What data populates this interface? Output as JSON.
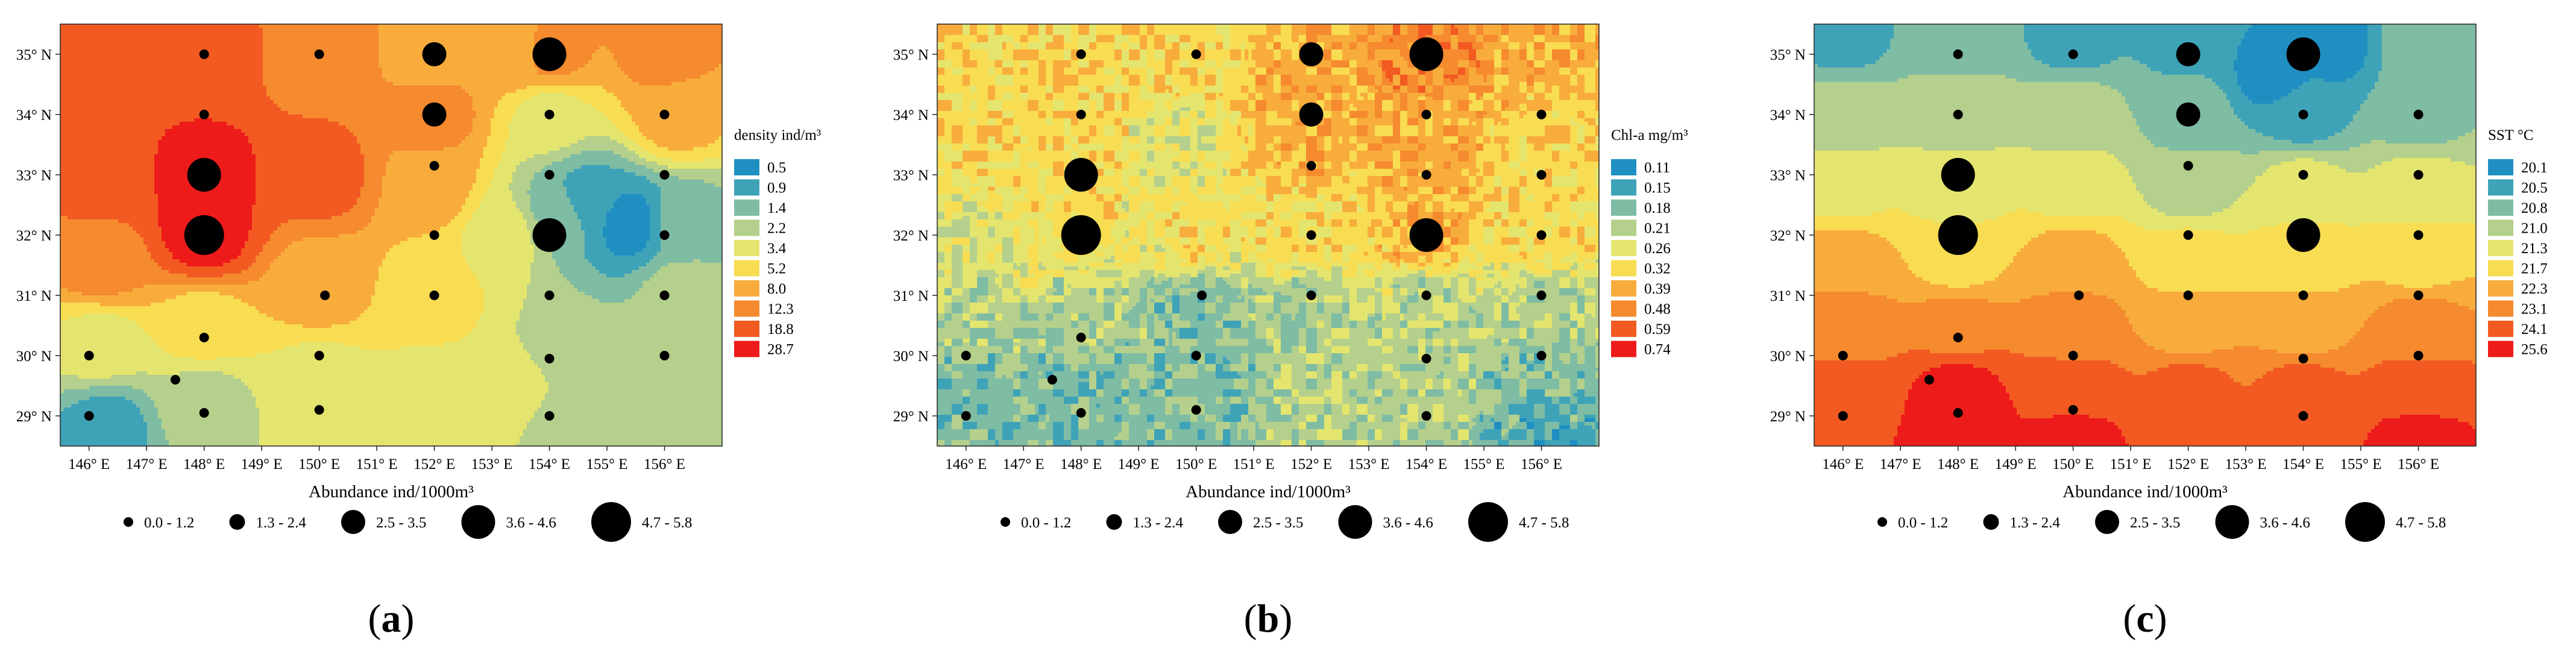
{
  "chart_data": [
    {
      "panel": "(a)",
      "type": "heatmap",
      "variable_legend": {
        "title": "density ind/m³",
        "levels": [
          "0.5",
          "0.9",
          "1.4",
          "2.2",
          "3.4",
          "5.2",
          "8.0",
          "12.3",
          "18.8",
          "28.7"
        ]
      },
      "x_ticks": [
        "146° E",
        "147° E",
        "148° E",
        "149° E",
        "150° E",
        "151° E",
        "152° E",
        "153° E",
        "154° E",
        "155° E",
        "156° E"
      ],
      "y_ticks": [
        "35° N",
        "34° N",
        "33° N",
        "32° N",
        "31° N",
        "30° N",
        "29° N"
      ],
      "xlim": [
        145.5,
        157.0
      ],
      "ylim": [
        28.5,
        35.5
      ],
      "xlabel": "Abundance ind/1000m³",
      "size_legend": [
        "0.0 - 1.2",
        "1.3 - 2.4",
        "2.5 - 3.5",
        "3.6 - 4.6",
        "4.7 - 5.8"
      ],
      "field": [
        {
          "lon": 146.2,
          "lat": 34.8,
          "v": 8
        },
        {
          "lon": 146.2,
          "lat": 33,
          "v": 8
        },
        {
          "lon": 146.2,
          "lat": 31.5,
          "v": 7
        },
        {
          "lon": 146.2,
          "lat": 30.2,
          "v": 4
        },
        {
          "lon": 146.3,
          "lat": 28.8,
          "v": 1
        },
        {
          "lon": 148,
          "lat": 33,
          "v": 9
        },
        {
          "lon": 148,
          "lat": 32,
          "v": 9
        },
        {
          "lon": 148,
          "lat": 35,
          "v": 8
        },
        {
          "lon": 148,
          "lat": 30.5,
          "v": 5
        },
        {
          "lon": 148,
          "lat": 29.2,
          "v": 3
        },
        {
          "lon": 150,
          "lat": 35,
          "v": 7
        },
        {
          "lon": 150,
          "lat": 33,
          "v": 8
        },
        {
          "lon": 150,
          "lat": 31.2,
          "v": 6
        },
        {
          "lon": 150,
          "lat": 29.5,
          "v": 4
        },
        {
          "lon": 152,
          "lat": 35,
          "v": 6
        },
        {
          "lon": 152,
          "lat": 34,
          "v": 7
        },
        {
          "lon": 152,
          "lat": 32.8,
          "v": 6
        },
        {
          "lon": 152,
          "lat": 31,
          "v": 5
        },
        {
          "lon": 152,
          "lat": 29.3,
          "v": 4
        },
        {
          "lon": 153.5,
          "lat": 35,
          "v": 6
        },
        {
          "lon": 153.2,
          "lat": 32,
          "v": 4
        },
        {
          "lon": 153.5,
          "lat": 29.5,
          "v": 4
        },
        {
          "lon": 154,
          "lat": 35,
          "v": 7
        },
        {
          "lon": 154,
          "lat": 34,
          "v": 4
        },
        {
          "lon": 154.6,
          "lat": 32.6,
          "v": 1
        },
        {
          "lon": 154.2,
          "lat": 32.4,
          "v": 2
        },
        {
          "lon": 155.4,
          "lat": 32.2,
          "v": 0
        },
        {
          "lon": 154.2,
          "lat": 30,
          "v": 3
        },
        {
          "lon": 154.3,
          "lat": 29,
          "v": 3
        },
        {
          "lon": 156,
          "lat": 35,
          "v": 7
        },
        {
          "lon": 156.2,
          "lat": 34,
          "v": 6
        },
        {
          "lon": 156.3,
          "lat": 32.2,
          "v": 2
        },
        {
          "lon": 156.3,
          "lat": 31,
          "v": 3
        },
        {
          "lon": 156.2,
          "lat": 29.6,
          "v": 3
        }
      ],
      "stations": [
        {
          "lon": 148,
          "lat": 35,
          "c": 0
        },
        {
          "lon": 150,
          "lat": 35,
          "c": 0
        },
        {
          "lon": 152,
          "lat": 35,
          "c": 2
        },
        {
          "lon": 154,
          "lat": 35,
          "c": 3
        },
        {
          "lon": 148,
          "lat": 34,
          "c": 0
        },
        {
          "lon": 152,
          "lat": 34,
          "c": 2
        },
        {
          "lon": 154,
          "lat": 34,
          "c": 0
        },
        {
          "lon": 156,
          "lat": 34,
          "c": 0
        },
        {
          "lon": 148,
          "lat": 33,
          "c": 3
        },
        {
          "lon": 152,
          "lat": 33.15,
          "c": 0
        },
        {
          "lon": 154,
          "lat": 33,
          "c": 0
        },
        {
          "lon": 156,
          "lat": 33,
          "c": 0
        },
        {
          "lon": 148,
          "lat": 32,
          "c": 4
        },
        {
          "lon": 152,
          "lat": 32,
          "c": 0
        },
        {
          "lon": 154,
          "lat": 32,
          "c": 3
        },
        {
          "lon": 156,
          "lat": 32,
          "c": 0
        },
        {
          "lon": 150.1,
          "lat": 31,
          "c": 0
        },
        {
          "lon": 152,
          "lat": 31,
          "c": 0
        },
        {
          "lon": 154,
          "lat": 31,
          "c": 0
        },
        {
          "lon": 156,
          "lat": 31,
          "c": 0
        },
        {
          "lon": 148,
          "lat": 30.3,
          "c": 0
        },
        {
          "lon": 146,
          "lat": 30,
          "c": 0
        },
        {
          "lon": 150,
          "lat": 30,
          "c": 0
        },
        {
          "lon": 154,
          "lat": 29.95,
          "c": 0
        },
        {
          "lon": 156,
          "lat": 30,
          "c": 0
        },
        {
          "lon": 147.5,
          "lat": 29.6,
          "c": 0
        },
        {
          "lon": 146,
          "lat": 29,
          "c": 0
        },
        {
          "lon": 148,
          "lat": 29.05,
          "c": 0
        },
        {
          "lon": 150,
          "lat": 29.1,
          "c": 0
        },
        {
          "lon": 154,
          "lat": 29,
          "c": 0
        }
      ]
    },
    {
      "panel": "(b)",
      "type": "heatmap",
      "variable_legend": {
        "title": "Chl-a mg/m³",
        "levels": [
          "0.11",
          "0.15",
          "0.18",
          "0.21",
          "0.26",
          "0.32",
          "0.39",
          "0.48",
          "0.59",
          "0.74"
        ]
      },
      "x_ticks": [
        "146° E",
        "147° E",
        "148° E",
        "149° E",
        "150° E",
        "151° E",
        "152° E",
        "153° E",
        "154° E",
        "155° E",
        "156° E"
      ],
      "y_ticks": [
        "35° N",
        "34° N",
        "33° N",
        "32° N",
        "31° N",
        "30° N",
        "29° N"
      ],
      "xlim": [
        145.5,
        157.0
      ],
      "ylim": [
        28.5,
        35.5
      ],
      "xlabel": "Abundance ind/1000m³",
      "size_legend": [
        "0.0 - 1.2",
        "1.3 - 2.4",
        "2.5 - 3.5",
        "3.6 - 4.6",
        "4.7 - 5.8"
      ],
      "field": [
        {
          "lon": 146,
          "lat": 35,
          "v": 5
        },
        {
          "lon": 148,
          "lat": 35,
          "v": 5
        },
        {
          "lon": 150,
          "lat": 35,
          "v": 5
        },
        {
          "lon": 152,
          "lat": 35,
          "v": 6
        },
        {
          "lon": 154,
          "lat": 35,
          "v": 7
        },
        {
          "lon": 156,
          "lat": 35,
          "v": 6
        },
        {
          "lon": 146,
          "lat": 33.5,
          "v": 5
        },
        {
          "lon": 148,
          "lat": 33.5,
          "v": 5
        },
        {
          "lon": 149.5,
          "lat": 33.5,
          "v": 4
        },
        {
          "lon": 152,
          "lat": 33.5,
          "v": 6
        },
        {
          "lon": 154,
          "lat": 33.5,
          "v": 6
        },
        {
          "lon": 156,
          "lat": 33.5,
          "v": 5
        },
        {
          "lon": 146,
          "lat": 32,
          "v": 4
        },
        {
          "lon": 148,
          "lat": 32,
          "v": 5
        },
        {
          "lon": 150,
          "lat": 32,
          "v": 5
        },
        {
          "lon": 152,
          "lat": 32,
          "v": 5
        },
        {
          "lon": 154,
          "lat": 32,
          "v": 6
        },
        {
          "lon": 156,
          "lat": 32,
          "v": 5
        },
        {
          "lon": 146,
          "lat": 30.8,
          "v": 3
        },
        {
          "lon": 148,
          "lat": 30.8,
          "v": 3
        },
        {
          "lon": 150,
          "lat": 30.8,
          "v": 2
        },
        {
          "lon": 152,
          "lat": 30.8,
          "v": 3
        },
        {
          "lon": 154,
          "lat": 30.8,
          "v": 3
        },
        {
          "lon": 156,
          "lat": 30.8,
          "v": 3
        },
        {
          "lon": 146,
          "lat": 29.4,
          "v": 2
        },
        {
          "lon": 148,
          "lat": 29.4,
          "v": 2
        },
        {
          "lon": 150,
          "lat": 29.4,
          "v": 2
        },
        {
          "lon": 152,
          "lat": 29.4,
          "v": 3
        },
        {
          "lon": 154,
          "lat": 29.4,
          "v": 3
        },
        {
          "lon": 156,
          "lat": 29.4,
          "v": 2
        },
        {
          "lon": 146,
          "lat": 28.6,
          "v": 2
        },
        {
          "lon": 150,
          "lat": 28.6,
          "v": 2
        },
        {
          "lon": 156,
          "lat": 28.6,
          "v": 1
        }
      ],
      "stations": [
        {
          "lon": 148,
          "lat": 35,
          "c": 0
        },
        {
          "lon": 150,
          "lat": 35,
          "c": 0
        },
        {
          "lon": 152,
          "lat": 35,
          "c": 2
        },
        {
          "lon": 154,
          "lat": 35,
          "c": 3
        },
        {
          "lon": 148,
          "lat": 34,
          "c": 0
        },
        {
          "lon": 152,
          "lat": 34,
          "c": 2
        },
        {
          "lon": 154,
          "lat": 34,
          "c": 0
        },
        {
          "lon": 156,
          "lat": 34,
          "c": 0
        },
        {
          "lon": 148,
          "lat": 33,
          "c": 3
        },
        {
          "lon": 152,
          "lat": 33.15,
          "c": 0
        },
        {
          "lon": 154,
          "lat": 33,
          "c": 0
        },
        {
          "lon": 156,
          "lat": 33,
          "c": 0
        },
        {
          "lon": 148,
          "lat": 32,
          "c": 4
        },
        {
          "lon": 152,
          "lat": 32,
          "c": 0
        },
        {
          "lon": 154,
          "lat": 32,
          "c": 3
        },
        {
          "lon": 156,
          "lat": 32,
          "c": 0
        },
        {
          "lon": 150.1,
          "lat": 31,
          "c": 0
        },
        {
          "lon": 152,
          "lat": 31,
          "c": 0
        },
        {
          "lon": 154,
          "lat": 31,
          "c": 0
        },
        {
          "lon": 156,
          "lat": 31,
          "c": 0
        },
        {
          "lon": 148,
          "lat": 30.3,
          "c": 0
        },
        {
          "lon": 146,
          "lat": 30,
          "c": 0
        },
        {
          "lon": 150,
          "lat": 30,
          "c": 0
        },
        {
          "lon": 154,
          "lat": 29.95,
          "c": 0
        },
        {
          "lon": 156,
          "lat": 30,
          "c": 0
        },
        {
          "lon": 147.5,
          "lat": 29.6,
          "c": 0
        },
        {
          "lon": 146,
          "lat": 29,
          "c": 0
        },
        {
          "lon": 148,
          "lat": 29.05,
          "c": 0
        },
        {
          "lon": 150,
          "lat": 29.1,
          "c": 0
        },
        {
          "lon": 154,
          "lat": 29,
          "c": 0
        }
      ]
    },
    {
      "panel": "(c)",
      "type": "heatmap",
      "variable_legend": {
        "title": "SST °C",
        "levels": [
          "20.1",
          "20.5",
          "20.8",
          "21.0",
          "21.3",
          "21.7",
          "22.3",
          "23.1",
          "24.1",
          "25.6"
        ]
      },
      "x_ticks": [
        "146° E",
        "147° E",
        "148° E",
        "149° E",
        "150° E",
        "151° E",
        "152° E",
        "153° E",
        "154° E",
        "155° E",
        "156° E"
      ],
      "y_ticks": [
        "35° N",
        "34° N",
        "33° N",
        "32° N",
        "31° N",
        "30° N",
        "29° N"
      ],
      "xlim": [
        145.5,
        157.0
      ],
      "ylim": [
        28.5,
        35.5
      ],
      "xlabel": "Abundance ind/1000m³",
      "size_legend": [
        "0.0 - 1.2",
        "1.3 - 2.4",
        "2.5 - 3.5",
        "3.6 - 4.6",
        "4.7 - 5.8"
      ],
      "field": [
        {
          "lon": 146,
          "lat": 35.3,
          "v": 1
        },
        {
          "lon": 148,
          "lat": 35.3,
          "v": 2
        },
        {
          "lon": 150,
          "lat": 35.3,
          "v": 1
        },
        {
          "lon": 152,
          "lat": 35.3,
          "v": 1
        },
        {
          "lon": 153.5,
          "lat": 34.7,
          "v": 0
        },
        {
          "lon": 154.5,
          "lat": 35.2,
          "v": 0
        },
        {
          "lon": 156,
          "lat": 35.2,
          "v": 2
        },
        {
          "lon": 146,
          "lat": 34,
          "v": 3
        },
        {
          "lon": 148,
          "lat": 34,
          "v": 3
        },
        {
          "lon": 150,
          "lat": 34,
          "v": 3
        },
        {
          "lon": 152,
          "lat": 34,
          "v": 2
        },
        {
          "lon": 154,
          "lat": 34,
          "v": 1
        },
        {
          "lon": 156,
          "lat": 34,
          "v": 2
        },
        {
          "lon": 146,
          "lat": 32.8,
          "v": 4
        },
        {
          "lon": 148,
          "lat": 32.8,
          "v": 4
        },
        {
          "lon": 150,
          "lat": 32.8,
          "v": 4
        },
        {
          "lon": 152,
          "lat": 32.8,
          "v": 3
        },
        {
          "lon": 154,
          "lat": 32.8,
          "v": 4
        },
        {
          "lon": 156,
          "lat": 32.8,
          "v": 4
        },
        {
          "lon": 146,
          "lat": 31.6,
          "v": 6
        },
        {
          "lon": 148,
          "lat": 31.6,
          "v": 5
        },
        {
          "lon": 150,
          "lat": 31.6,
          "v": 6
        },
        {
          "lon": 152,
          "lat": 31.6,
          "v": 5
        },
        {
          "lon": 154,
          "lat": 31.6,
          "v": 5
        },
        {
          "lon": 156,
          "lat": 31.6,
          "v": 5
        },
        {
          "lon": 146,
          "lat": 30.5,
          "v": 7
        },
        {
          "lon": 148,
          "lat": 30.5,
          "v": 7
        },
        {
          "lon": 150,
          "lat": 30.5,
          "v": 7
        },
        {
          "lon": 152,
          "lat": 30.5,
          "v": 6
        },
        {
          "lon": 154,
          "lat": 30.5,
          "v": 6
        },
        {
          "lon": 156,
          "lat": 30.5,
          "v": 7
        },
        {
          "lon": 146,
          "lat": 29.4,
          "v": 8
        },
        {
          "lon": 148,
          "lat": 29.4,
          "v": 9
        },
        {
          "lon": 150,
          "lat": 29.4,
          "v": 8
        },
        {
          "lon": 152,
          "lat": 29.4,
          "v": 8
        },
        {
          "lon": 154,
          "lat": 29.4,
          "v": 8
        },
        {
          "lon": 156,
          "lat": 29.4,
          "v": 8
        },
        {
          "lon": 148,
          "lat": 28.6,
          "v": 9
        },
        {
          "lon": 150,
          "lat": 28.6,
          "v": 9
        },
        {
          "lon": 156,
          "lat": 28.6,
          "v": 9
        }
      ],
      "stations": [
        {
          "lon": 148,
          "lat": 35,
          "c": 0
        },
        {
          "lon": 150,
          "lat": 35,
          "c": 0
        },
        {
          "lon": 152,
          "lat": 35,
          "c": 2
        },
        {
          "lon": 154,
          "lat": 35,
          "c": 3
        },
        {
          "lon": 148,
          "lat": 34,
          "c": 0
        },
        {
          "lon": 152,
          "lat": 34,
          "c": 2
        },
        {
          "lon": 154,
          "lat": 34,
          "c": 0
        },
        {
          "lon": 156,
          "lat": 34,
          "c": 0
        },
        {
          "lon": 148,
          "lat": 33,
          "c": 3
        },
        {
          "lon": 152,
          "lat": 33.15,
          "c": 0
        },
        {
          "lon": 154,
          "lat": 33,
          "c": 0
        },
        {
          "lon": 156,
          "lat": 33,
          "c": 0
        },
        {
          "lon": 148,
          "lat": 32,
          "c": 4
        },
        {
          "lon": 152,
          "lat": 32,
          "c": 0
        },
        {
          "lon": 154,
          "lat": 32,
          "c": 3
        },
        {
          "lon": 156,
          "lat": 32,
          "c": 0
        },
        {
          "lon": 150.1,
          "lat": 31,
          "c": 0
        },
        {
          "lon": 152,
          "lat": 31,
          "c": 0
        },
        {
          "lon": 154,
          "lat": 31,
          "c": 0
        },
        {
          "lon": 156,
          "lat": 31,
          "c": 0
        },
        {
          "lon": 148,
          "lat": 30.3,
          "c": 0
        },
        {
          "lon": 146,
          "lat": 30,
          "c": 0
        },
        {
          "lon": 150,
          "lat": 30,
          "c": 0
        },
        {
          "lon": 154,
          "lat": 29.95,
          "c": 0
        },
        {
          "lon": 156,
          "lat": 30,
          "c": 0
        },
        {
          "lon": 147.5,
          "lat": 29.6,
          "c": 0
        },
        {
          "lon": 146,
          "lat": 29,
          "c": 0
        },
        {
          "lon": 148,
          "lat": 29.05,
          "c": 0
        },
        {
          "lon": 150,
          "lat": 29.1,
          "c": 0
        },
        {
          "lon": 154,
          "lat": 29,
          "c": 0
        }
      ]
    }
  ],
  "palette": [
    "#1f8fc2",
    "#3fa3b8",
    "#7fbca4",
    "#b4d08c",
    "#e4e56e",
    "#f8dc52",
    "#f8ac3c",
    "#f58a2e",
    "#f25a22",
    "#ee1b1b"
  ],
  "grain": [
    0,
    1,
    0
  ]
}
